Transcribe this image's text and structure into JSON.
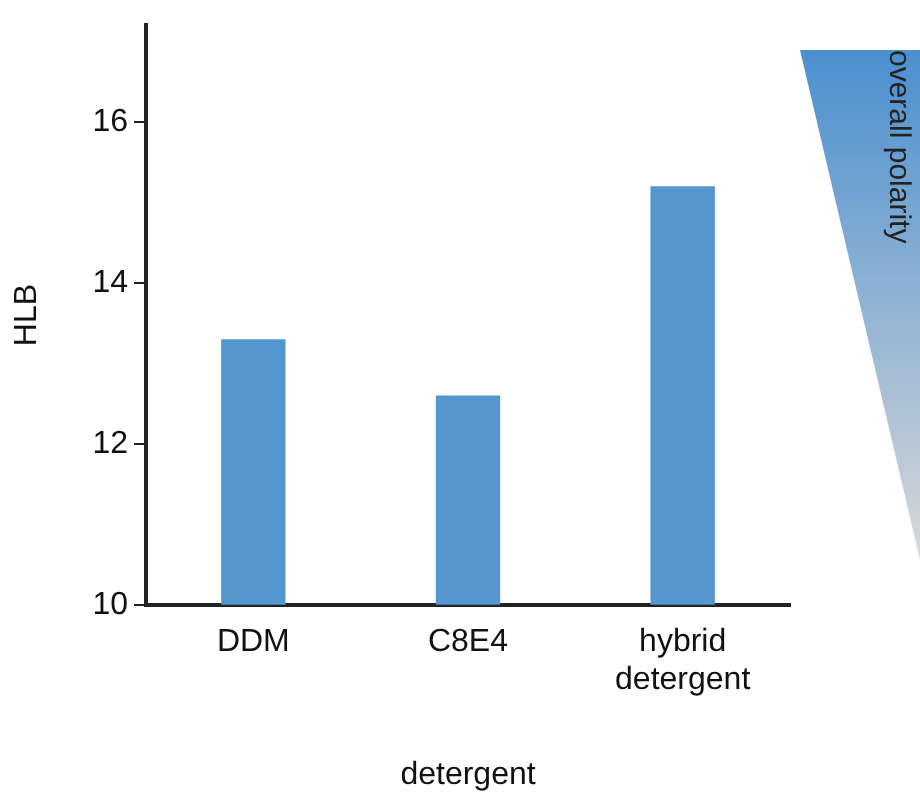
{
  "chart_data": {
    "type": "bar",
    "xlabel": "detergent",
    "ylabel": "HLB",
    "categories": [
      "DDM",
      "C8E4",
      "hybrid detergent"
    ],
    "values": [
      13.3,
      12.6,
      15.2
    ],
    "color": "#5596cf",
    "ylim": [
      10,
      17.2
    ],
    "yticks": [
      10,
      12,
      14,
      16
    ],
    "grid": false,
    "annotations": [
      "overall polarity"
    ]
  }
}
